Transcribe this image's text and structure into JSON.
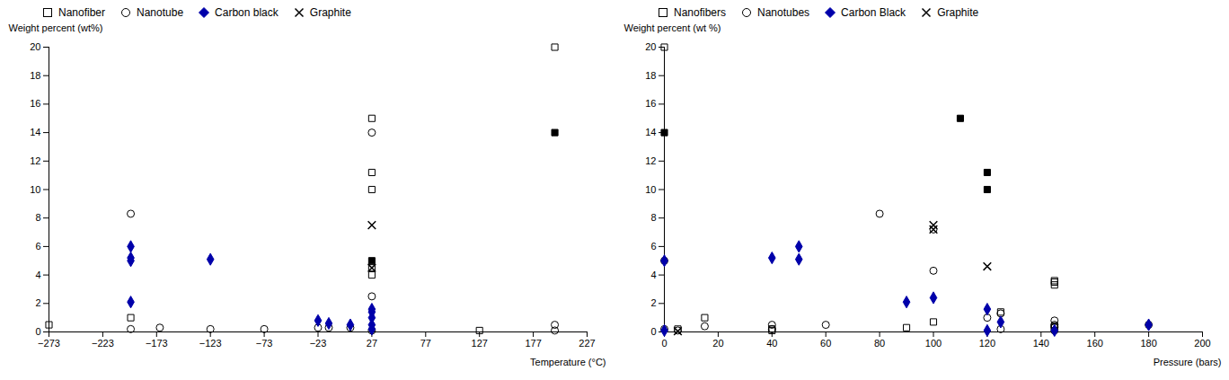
{
  "chart_data": [
    {
      "type": "scatter",
      "xlabel": "Temperature (°C)",
      "ylabel": "Weight percent (wt%)",
      "xlim": [
        -273,
        227
      ],
      "ylim": [
        0,
        20
      ],
      "xticks": [
        -273,
        -223,
        -173,
        -123,
        -73,
        -23,
        27,
        77,
        127,
        177,
        227
      ],
      "yticks": [
        0,
        2,
        4,
        6,
        8,
        10,
        12,
        14,
        16,
        18,
        20
      ],
      "grid": false,
      "legend": "upper left",
      "series": [
        {
          "name": "Nanofiber",
          "color": "#000000",
          "marker": "open_square",
          "x": [
            -273,
            -197,
            27,
            27,
            27,
            27,
            27,
            127,
            197
          ],
          "values": [
            0.5,
            1.0,
            15.0,
            11.2,
            10.0,
            4.5,
            4.0,
            0.1,
            20.0
          ]
        },
        {
          "color": "#000000",
          "marker": "filled_square",
          "x": [
            27,
            197
          ],
          "values": [
            5.0,
            14.0
          ]
        },
        {
          "name": "Nanotube",
          "color": "#000000",
          "marker": "open_circle",
          "x": [
            -197,
            -197,
            -170,
            -123,
            -73,
            -23,
            -13,
            7,
            27,
            27,
            27,
            197,
            197
          ],
          "values": [
            8.3,
            0.2,
            0.3,
            0.2,
            0.2,
            0.3,
            0.3,
            0.3,
            14.0,
            2.5,
            0.1,
            0.5,
            0.1
          ]
        },
        {
          "name": "Carbon black",
          "color": "#0000aa",
          "marker": "filled_diamond",
          "x": [
            -197,
            -197,
            -197,
            -197,
            -123,
            -23,
            -13,
            7,
            27,
            27,
            27,
            27,
            27
          ],
          "values": [
            6.0,
            5.2,
            5.0,
            2.1,
            5.1,
            0.8,
            0.6,
            0.5,
            1.6,
            1.4,
            1.0,
            0.5,
            0.2
          ]
        },
        {
          "name": "Graphite",
          "color": "#000000",
          "marker": "x",
          "x": [
            27,
            27
          ],
          "values": [
            7.5,
            4.5
          ]
        }
      ]
    },
    {
      "type": "scatter",
      "xlabel": "Pressure (bars)",
      "ylabel": "Weight percent (wt %)",
      "xlim": [
        0,
        200
      ],
      "ylim": [
        0,
        20
      ],
      "xticks": [
        0,
        20,
        40,
        60,
        80,
        100,
        120,
        140,
        160,
        180,
        200
      ],
      "yticks": [
        0,
        2,
        4,
        6,
        8,
        10,
        12,
        14,
        16,
        18,
        20
      ],
      "grid": false,
      "legend": "upper left",
      "series": [
        {
          "name": "Nanofibers",
          "color": "#000000",
          "marker": "open_square",
          "x": [
            0,
            5,
            15,
            40,
            40,
            90,
            100,
            125,
            145,
            145,
            145,
            145
          ],
          "values": [
            20.0,
            0.2,
            1.0,
            0.2,
            0.1,
            0.3,
            0.7,
            1.4,
            3.6,
            3.5,
            3.3,
            0.4
          ]
        },
        {
          "color": "#000000",
          "marker": "filled_square",
          "x": [
            0,
            110,
            120,
            120
          ],
          "values": [
            14.0,
            15.0,
            11.2,
            10.0
          ]
        },
        {
          "name": "Nanotubes",
          "color": "#000000",
          "marker": "open_circle",
          "x": [
            0,
            0,
            5,
            15,
            40,
            40,
            60,
            80,
            100,
            100,
            120,
            125,
            125,
            145,
            145,
            145,
            145,
            145,
            180
          ],
          "values": [
            5.0,
            0.2,
            0.1,
            0.4,
            0.5,
            0.2,
            0.5,
            8.3,
            7.2,
            4.3,
            1.0,
            1.3,
            0.2,
            0.8,
            0.5,
            0.4,
            0.3,
            0.1,
            0.5
          ]
        },
        {
          "name": "Carbon Black",
          "color": "#0000aa",
          "marker": "filled_diamond",
          "x": [
            0,
            0,
            40,
            50,
            50,
            90,
            100,
            120,
            120,
            125,
            145,
            180
          ],
          "values": [
            5.0,
            0.1,
            5.2,
            6.0,
            5.1,
            2.1,
            2.4,
            1.6,
            0.1,
            0.7,
            0.1,
            0.5
          ]
        },
        {
          "name": "Graphite",
          "color": "#000000",
          "marker": "x",
          "x": [
            5,
            100,
            100,
            120
          ],
          "values": [
            0.05,
            7.5,
            7.2,
            4.6
          ]
        }
      ]
    }
  ]
}
